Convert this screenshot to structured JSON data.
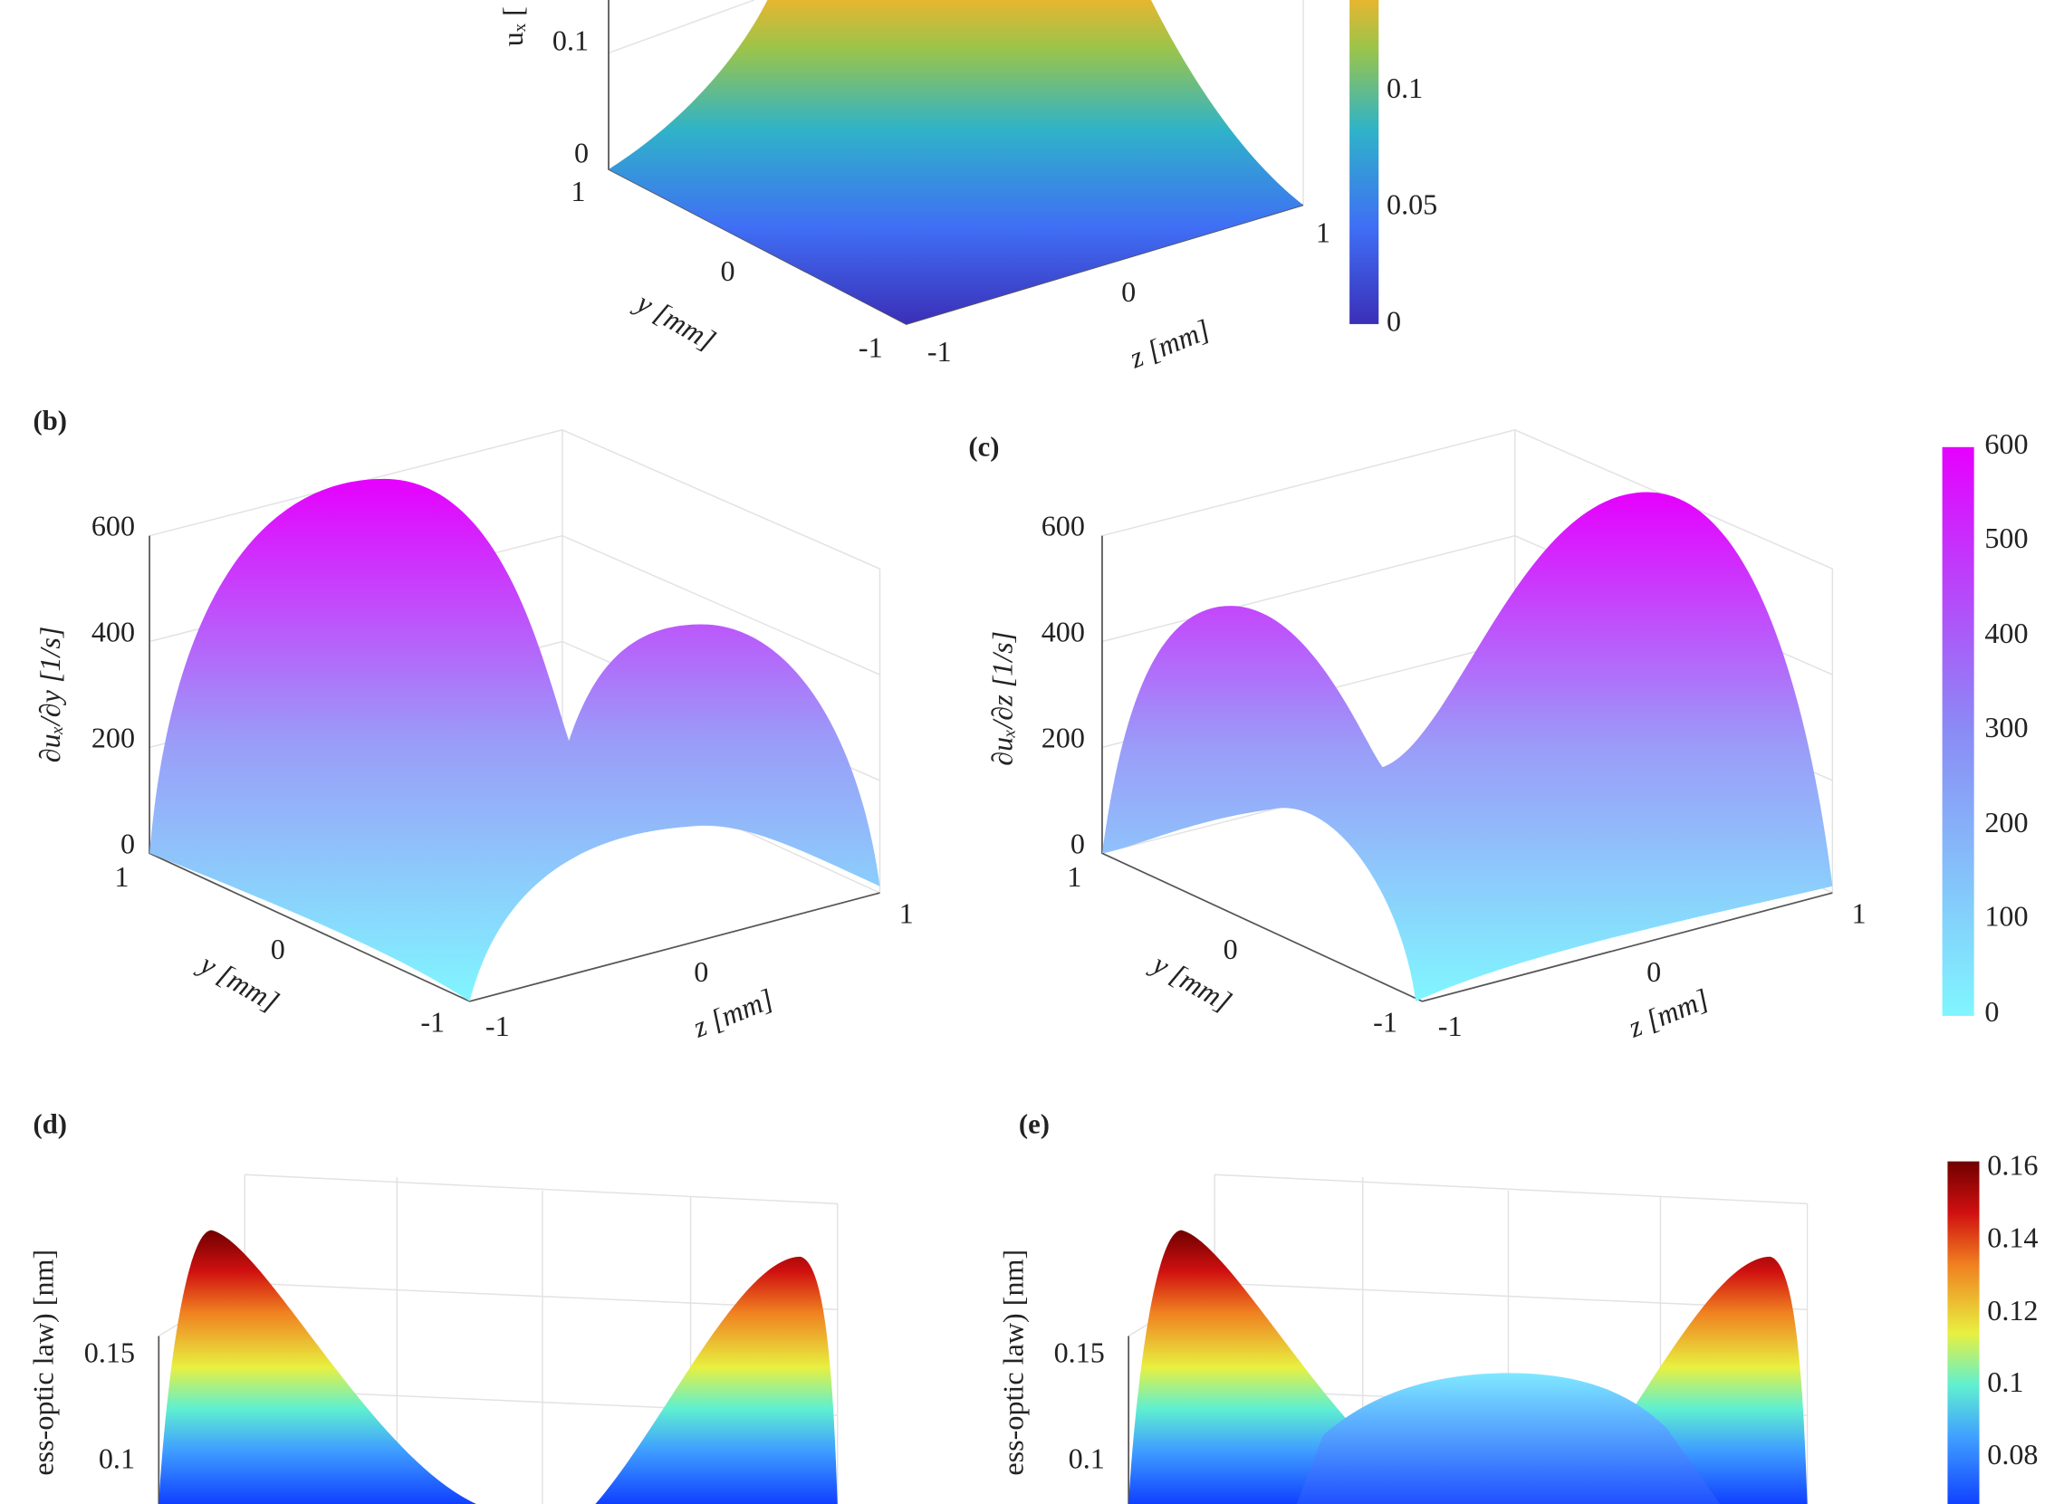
{
  "panels": [
    {
      "z_label": "uₓ [",
      "z_ticks": [
        0.1,
        0
      ],
      "y_label": "y [mm]",
      "y_ticks": [
        1,
        0,
        -1
      ],
      "x_label": "z [mm]",
      "x_ticks": [
        -1,
        0,
        1
      ]
    },
    {
      "label": "(b)",
      "z_label": "∂uₓ/∂y [1/s]",
      "z_ticks": [
        600,
        400,
        200,
        0
      ],
      "y_label": "y [mm]",
      "y_ticks": [
        1,
        0,
        -1
      ],
      "x_label": "z [mm]",
      "x_ticks": [
        -1,
        0,
        1
      ]
    },
    {
      "label": "(c)",
      "z_label": "∂uₓ/∂z [1/s]",
      "z_ticks": [
        600,
        400,
        200,
        0
      ],
      "y_label": "y [mm]",
      "y_ticks": [
        1,
        0,
        -1
      ],
      "x_label": "z [mm]",
      "x_ticks": [
        -1,
        0,
        1
      ]
    },
    {
      "label": "(d)",
      "z_label": "ess-optic law) [nm]",
      "z_ticks": [
        0.15,
        0.1
      ]
    },
    {
      "label": "(e)",
      "z_label": "ess-optic law) [nm]",
      "z_ticks": [
        0.15,
        0.1
      ]
    }
  ],
  "colorbars": [
    {
      "ticks": [
        0.1,
        0.05,
        0
      ]
    },
    {
      "ticks": [
        600,
        500,
        400,
        300,
        200,
        100,
        0
      ]
    },
    {
      "ticks": [
        0.16,
        0.14,
        0.12,
        0.1,
        0.08
      ]
    }
  ]
}
